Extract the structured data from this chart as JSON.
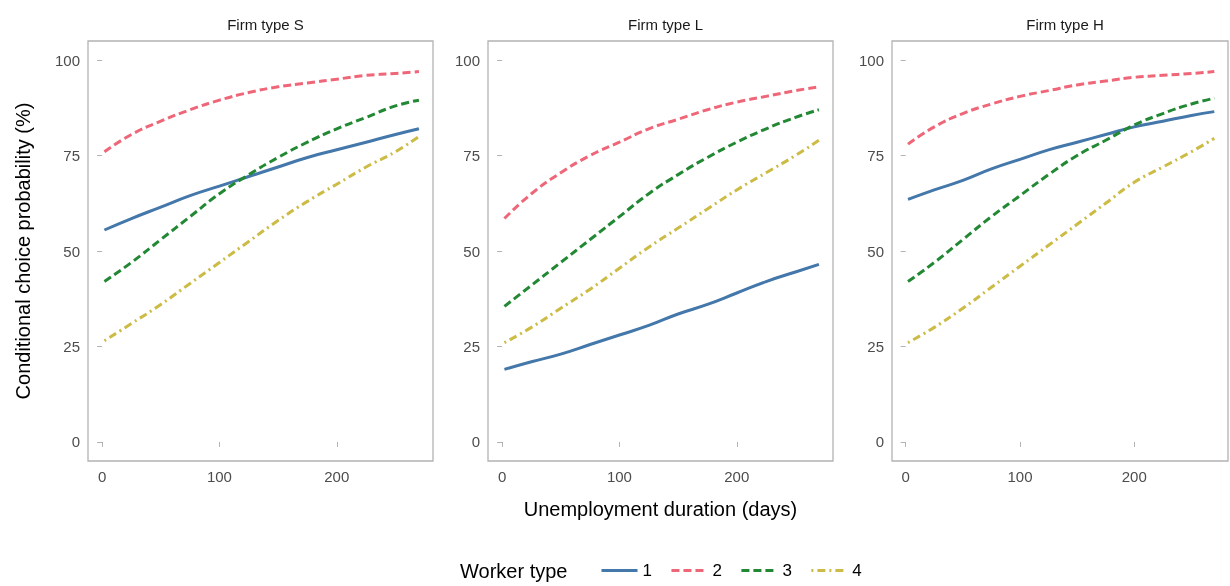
{
  "chart_data": [
    {
      "type": "line",
      "title": "Firm type S",
      "ylabel": "Conditional choice probability (%)",
      "x": [
        2,
        25,
        50,
        75,
        100,
        125,
        150,
        175,
        200,
        225,
        250,
        270
      ],
      "xlim": [
        -12,
        282
      ],
      "xticks": [
        0,
        100,
        200
      ],
      "ylim": [
        -5,
        105
      ],
      "yticks": [
        0,
        25,
        50,
        75,
        100
      ],
      "grid": false,
      "legend": false,
      "marker": "none",
      "series": [
        {
          "color": "#4477aa",
          "line_style": "solid",
          "values": [
            55.5,
            58.5,
            61.5,
            64.5,
            67,
            69.5,
            72,
            74.5,
            76.5,
            78.5,
            80.5,
            82
          ]
        },
        {
          "color": "#ee6677",
          "line_style": "dashed",
          "values": [
            76,
            80.5,
            84,
            87,
            89.5,
            91.5,
            93,
            94,
            95,
            96,
            96.5,
            97
          ]
        },
        {
          "color": "#228833",
          "line_style": "dashed",
          "values": [
            42,
            47,
            53,
            59,
            65,
            70,
            74.5,
            78.5,
            82,
            85,
            88,
            89.5
          ]
        },
        {
          "color": "#ccbb44",
          "line_style": "dotted",
          "values": [
            26.5,
            31,
            36,
            41.5,
            47,
            52.5,
            58,
            63,
            67.5,
            72,
            76,
            80
          ]
        }
      ]
    },
    {
      "type": "line",
      "title": "Firm type L",
      "xlabel": "Unemployment duration (days)",
      "legend_title": "Worker type",
      "x": [
        2,
        25,
        50,
        75,
        100,
        125,
        150,
        175,
        200,
        225,
        250,
        270
      ],
      "xlim": [
        -12,
        282
      ],
      "xticks": [
        0,
        100,
        200
      ],
      "ylim": [
        -5,
        105
      ],
      "yticks": [
        0,
        25,
        50,
        75,
        100
      ],
      "grid": false,
      "legend": "bottom",
      "marker": "none",
      "series": [
        {
          "name": "1",
          "color": "#4477aa",
          "line_style": "solid",
          "values": [
            19,
            21,
            23,
            25.5,
            28,
            30.5,
            33.5,
            36,
            39,
            42,
            44.5,
            46.5
          ]
        },
        {
          "name": "2",
          "color": "#ee6677",
          "line_style": "dashed",
          "values": [
            58.5,
            65,
            70.5,
            75,
            78.5,
            82,
            84.5,
            87,
            89,
            90.5,
            92,
            93
          ]
        },
        {
          "name": "3",
          "color": "#228833",
          "line_style": "dashed",
          "values": [
            35.5,
            41,
            47,
            53,
            59,
            65,
            70,
            74.5,
            78.5,
            82,
            85,
            87
          ]
        },
        {
          "name": "4",
          "color": "#ccbb44",
          "line_style": "dotted",
          "values": [
            26,
            30,
            35,
            40,
            45.5,
            51,
            56,
            61,
            66,
            70.5,
            75,
            79
          ]
        }
      ]
    },
    {
      "type": "line",
      "title": "Firm type H",
      "x": [
        2,
        25,
        50,
        75,
        100,
        125,
        150,
        175,
        200,
        225,
        250,
        270
      ],
      "xlim": [
        -12,
        282
      ],
      "xticks": [
        0,
        100,
        200
      ],
      "ylim": [
        -5,
        105
      ],
      "yticks": [
        0,
        25,
        50,
        75,
        100
      ],
      "grid": false,
      "legend": false,
      "marker": "none",
      "series": [
        {
          "color": "#4477aa",
          "line_style": "solid",
          "values": [
            63.5,
            66,
            68.5,
            71.5,
            74,
            76.5,
            78.5,
            80.5,
            82.5,
            84,
            85.5,
            86.5
          ]
        },
        {
          "color": "#ee6677",
          "line_style": "dashed",
          "values": [
            78,
            82.5,
            86,
            88.5,
            90.5,
            92,
            93.5,
            94.5,
            95.5,
            96,
            96.5,
            97
          ]
        },
        {
          "color": "#228833",
          "line_style": "dashed",
          "values": [
            42,
            47,
            53,
            59,
            64.5,
            70,
            75,
            79,
            83,
            86,
            88.5,
            90
          ]
        },
        {
          "color": "#ccbb44",
          "line_style": "dotted",
          "values": [
            26,
            30,
            35,
            40.5,
            46,
            51.5,
            57,
            62.5,
            68,
            72,
            76,
            79.5
          ]
        }
      ]
    }
  ]
}
